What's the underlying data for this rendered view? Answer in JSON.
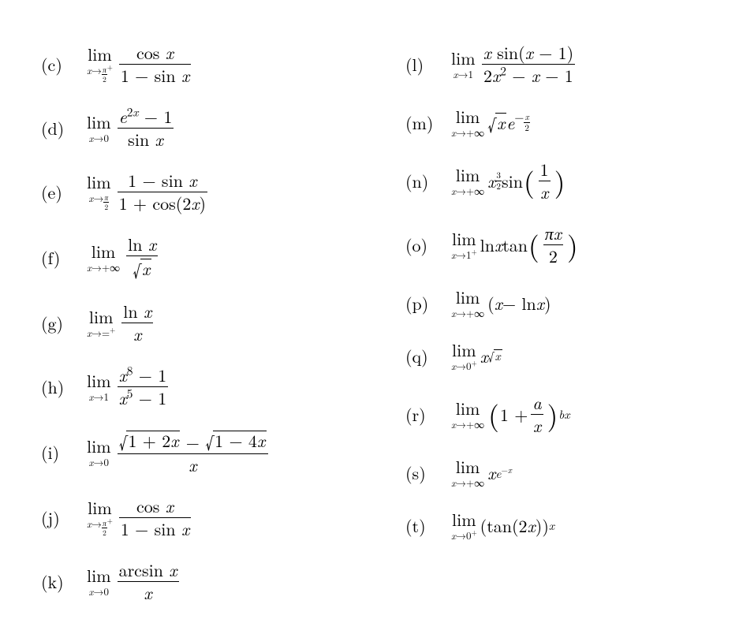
{
  "limword": "lim",
  "left": [
    {
      "label": "(c)",
      "sub_html": "<span class='it'>x</span>→<span class='sfrac'><span><span class='it'>π</span></span><span class='bar'></span><span>2</span></span><sup>+</sup>",
      "body_html": "<span class='frac'><span class='num'>cos <span class='it'>x</span></span><span class='bar'></span><span class='den'>1 − sin <span class='it'>x</span></span></span>"
    },
    {
      "label": "(d)",
      "sub_html": "<span class='it'>x</span>→0",
      "body_html": "<span class='frac'><span class='num'><span class='it'>e</span><sup>2<span class='it'>x</span></sup> − 1</span><span class='bar'></span><span class='den'>sin <span class='it'>x</span></span></span>"
    },
    {
      "label": "(e)",
      "sub_html": "<span class='it'>x</span>→<span class='sfrac'><span><span class='it'>π</span></span><span class='bar'></span><span>2</span></span>",
      "body_html": "<span class='frac'><span class='num'>1 − sin <span class='it'>x</span></span><span class='bar'></span><span class='den'>1 + cos(2<span class='it'>x</span>)</span></span>"
    },
    {
      "label": "(f)",
      "sub_html": "<span class='it'>x</span>→+∞",
      "body_html": "<span class='frac'><span class='num'>ln <span class='it'>x</span></span><span class='bar'></span><span class='den'><span class='sqrt'><span class='rad'>√</span><span class='under'><span class='it'>x</span></span></span></span></span>"
    },
    {
      "label": "(g)",
      "sub_html": "<span class='it'>x</span>→=<sup>+</sup>",
      "body_html": "<span class='frac'><span class='num'>ln <span class='it'>x</span></span><span class='bar'></span><span class='den'><span class='it'>x</span></span></span>"
    },
    {
      "label": "(h)",
      "sub_html": "<span class='it'>x</span>→1",
      "body_html": "<span class='frac'><span class='num'><span class='it'>x</span><sup>8</sup> − 1</span><span class='bar'></span><span class='den'><span class='it'>x</span><sup>5</sup> − 1</span></span>"
    },
    {
      "label": "(i)",
      "sub_html": "<span class='it'>x</span>→0",
      "body_html": "<span class='frac'><span class='num'><span class='sqrt'><span class='rad'>√</span><span class='under'>1 + 2<span class='it'>x</span></span></span> − <span class='sqrt'><span class='rad'>√</span><span class='under'>1 − 4<span class='it'>x</span></span></span></span><span class='bar'></span><span class='den'><span class='it'>x</span></span></span>"
    },
    {
      "label": "(j)",
      "sub_html": "<span class='it'>x</span>→<span class='sfrac'><span><span class='it'>π</span></span><span class='bar'></span><span>2</span></span><sup>+</sup>",
      "body_html": "<span class='frac'><span class='num'>cos <span class='it'>x</span></span><span class='bar'></span><span class='den'>1 − sin <span class='it'>x</span></span></span>"
    },
    {
      "label": "(k)",
      "sub_html": "<span class='it'>x</span>→0",
      "body_html": "<span class='frac'><span class='num'>arcsin <span class='it'>x</span></span><span class='bar'></span><span class='den'><span class='it'>x</span></span></span>"
    }
  ],
  "right": [
    {
      "label": "(l)",
      "sub_html": "<span class='it'>x</span>→1",
      "body_html": "<span class='frac'><span class='num'><span class='it'>x</span> sin(<span class='it'>x</span> − 1)</span><span class='bar'></span><span class='den'>2<span class='it'>x</span><sup>2</sup> − <span class='it'>x</span> − 1</span></span>"
    },
    {
      "label": "(m)",
      "sub_html": "<span class='it'>x</span>→+∞",
      "body_html": "<span class='sqrt'><span class='rad'>√</span><span class='under'><span class='it'>x</span></span></span><span class='it'>e</span><sup>−<span class='sfrac'><span><span class='it'>x</span></span><span class='bar'></span><span>2</span></span></sup>"
    },
    {
      "label": "(n)",
      "sub_html": "<span class='it'>x</span>→+∞",
      "body_html": "<span class='it'>x</span><sup><span class='sfrac'><span>3</span><span class='bar'></span><span>2</span></span></sup> sin<span class='bigparen'>(</span><span class='frac'><span class='num'>1</span><span class='bar'></span><span class='den'><span class='it'>x</span></span></span><span class='bigparen'>)</span>"
    },
    {
      "label": "(o)",
      "sub_html": "<span class='it'>x</span>→1<sup>+</sup>",
      "body_html": "ln <span class='it'>x</span> tan <span class='bigparen'>(</span><span class='frac'><span class='num'><span class='it'>πx</span></span><span class='bar'></span><span class='den'>2</span></span><span class='bigparen'>)</span>"
    },
    {
      "label": "(p)",
      "sub_html": "<span class='it'>x</span>→+∞",
      "body_html": "(<span class='it'>x</span> − ln <span class='it'>x</span>)"
    },
    {
      "label": "(q)",
      "sub_html": "<span class='it'>x</span>→0<sup>+</sup>",
      "body_html": "<span class='it'>x</span><sup><span class='sqrt'><span class='rad'>√</span><span class='under'><span class='it'>x</span></span></span></sup>"
    },
    {
      "label": "(r)",
      "sub_html": "<span class='it'>x</span>→+∞",
      "body_html": "<span class='bigparen'>(</span>1 + <span class='frac'><span class='num'><span class='it'>a</span></span><span class='bar'></span><span class='den'><span class='it'>x</span></span></span><span class='bigparen'>)</span><sup><span class='it'>bx</span></sup>"
    },
    {
      "label": "(s)",
      "sub_html": "<span class='it'>x</span>→+∞",
      "body_html": "<span class='it'>x</span><sup><span class='it'>e</span><sup>−<span class='it'>x</span></sup></sup>"
    },
    {
      "label": "(t)",
      "sub_html": "<span class='it'>x</span>→0<sup>+</sup>",
      "body_html": "(tan(2<span class='it'>x</span>))<sup><span class='it'>x</span></sup>"
    }
  ]
}
